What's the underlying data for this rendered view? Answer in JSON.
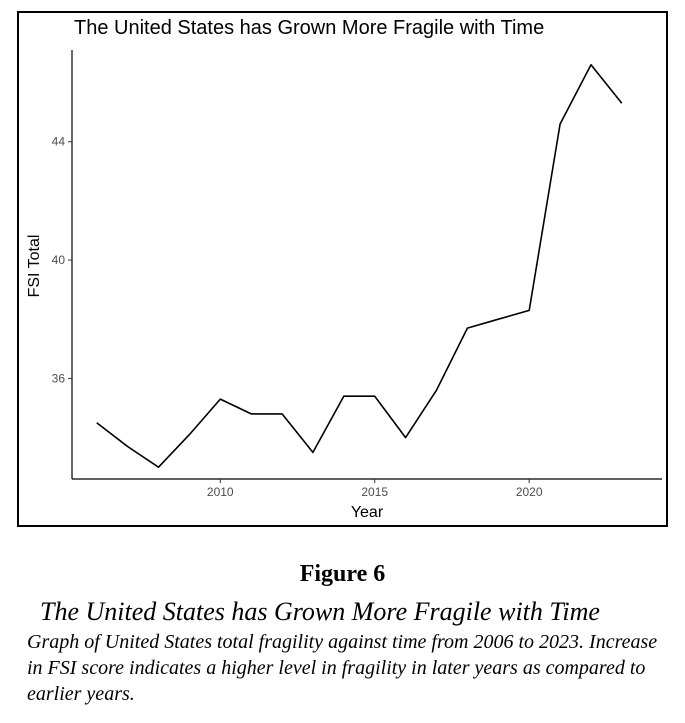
{
  "chart_data": {
    "type": "line",
    "title": "The United States has Grown More Fragile with Time",
    "xlabel": "Year",
    "ylabel": "FSI Total",
    "xlim": [
      2005.2,
      2024.3
    ],
    "ylim": [
      32.6,
      47.1
    ],
    "xticks": [
      2010,
      2015,
      2020
    ],
    "yticks": [
      36,
      40,
      44
    ],
    "grid": false,
    "x": [
      2006,
      2007,
      2008,
      2009,
      2010,
      2011,
      2012,
      2013,
      2014,
      2015,
      2016,
      2017,
      2018,
      2019,
      2020,
      2021,
      2022,
      2023
    ],
    "series": [
      {
        "values": [
          34.5,
          33.7,
          33.0,
          34.1,
          35.3,
          34.8,
          34.8,
          33.5,
          35.4,
          35.4,
          34.0,
          35.6,
          37.7,
          38.0,
          38.3,
          44.6,
          46.6,
          45.3
        ]
      }
    ],
    "line_color": "#000000"
  },
  "figure": {
    "number": "Figure 6",
    "title": "The United States has Grown More Fragile with Time",
    "caption": "Graph of United States total fragility against time from 2006 to 2023. Increase in FSI score indicates a higher level in fragility in later years as compared to earlier years."
  }
}
